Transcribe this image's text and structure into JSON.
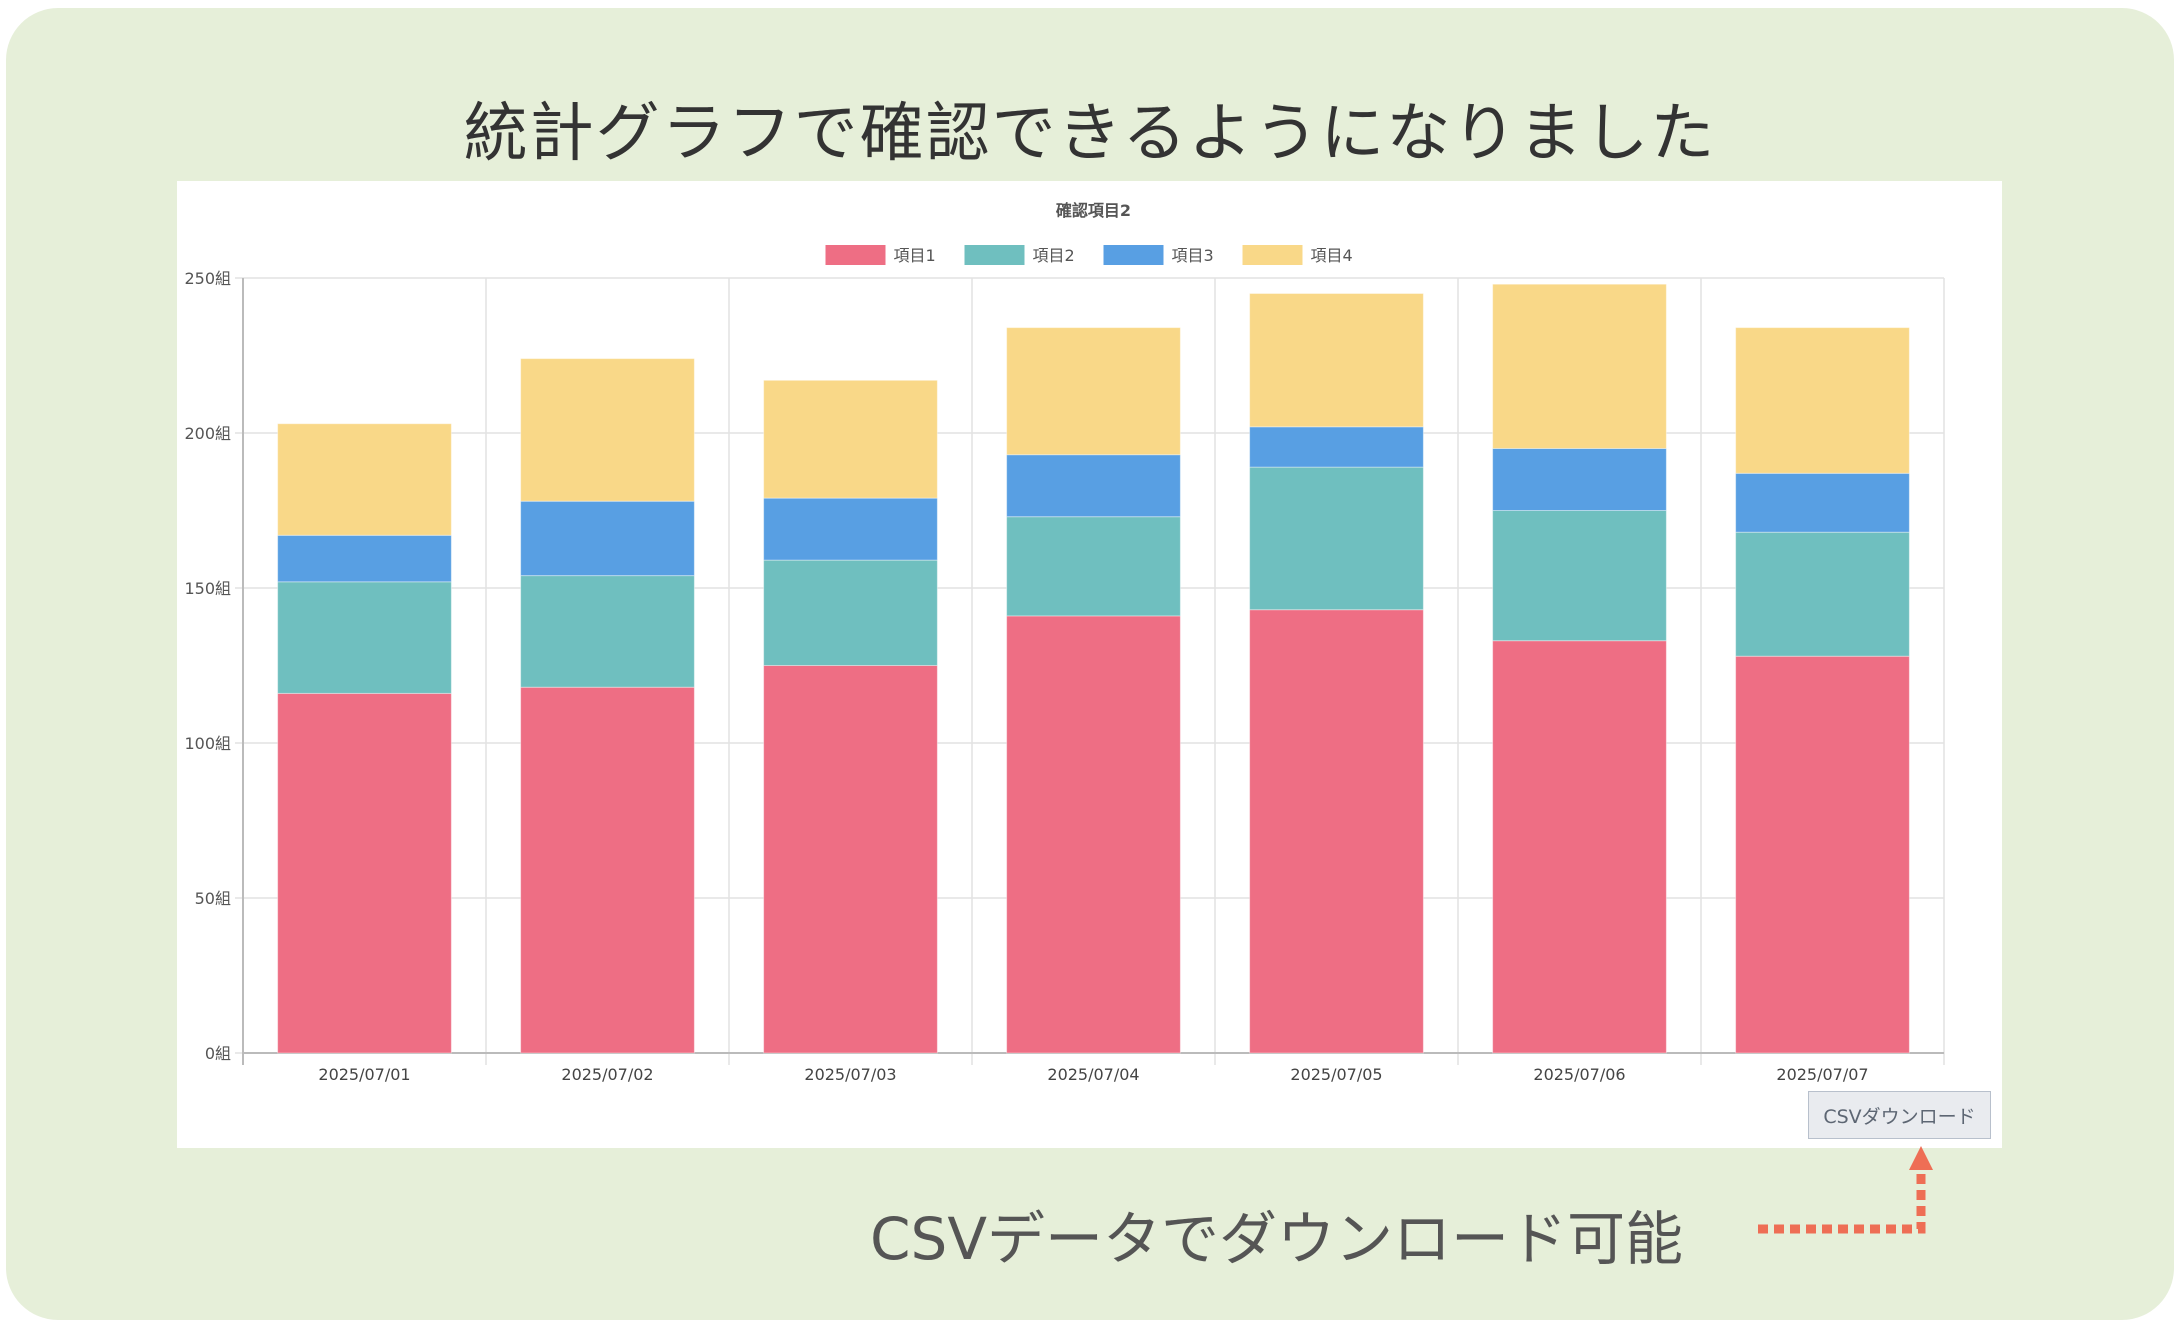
{
  "headline": "統計グラフで確認できるようになりました",
  "csv_button": "CSVダウンロード",
  "note": "CSVデータでダウンロード可能",
  "colors": {
    "background": "#e6efd9",
    "arrow": "#ee6e55"
  },
  "chart_data": {
    "type": "bar",
    "stacked": true,
    "title": "確認項目2",
    "categories": [
      "2025/07/01",
      "2025/07/02",
      "2025/07/03",
      "2025/07/04",
      "2025/07/05",
      "2025/07/06",
      "2025/07/07"
    ],
    "series": [
      {
        "name": "項目1",
        "color": "#ee6e84",
        "values": [
          116,
          118,
          125,
          141,
          143,
          133,
          128
        ]
      },
      {
        "name": "項目2",
        "color": "#6fbfbf",
        "values": [
          36,
          36,
          34,
          32,
          46,
          42,
          40
        ]
      },
      {
        "name": "項目3",
        "color": "#589fe3",
        "values": [
          15,
          24,
          20,
          20,
          13,
          20,
          19
        ]
      },
      {
        "name": "項目4",
        "color": "#f9d888",
        "values": [
          36,
          46,
          38,
          41,
          43,
          53,
          47
        ]
      }
    ],
    "yticks": [
      "0組",
      "50組",
      "100組",
      "150組",
      "200組",
      "250組"
    ],
    "ylim": [
      0,
      250
    ],
    "ytick_step": 50,
    "grid": true,
    "legend": "top"
  }
}
